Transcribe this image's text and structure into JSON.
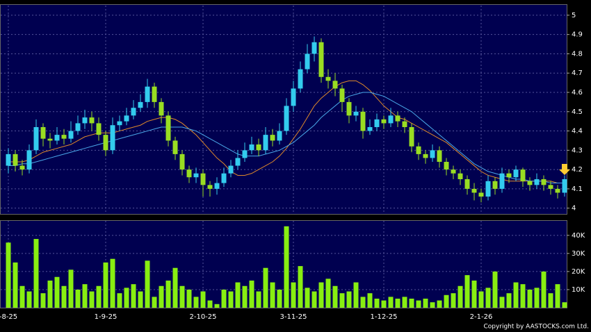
{
  "chart_data": [
    {
      "type": "candlestick",
      "categories": [
        "-8-25",
        null,
        null,
        null,
        null,
        null,
        null,
        null,
        null,
        null,
        null,
        null,
        null,
        null,
        "1-9-25",
        null,
        null,
        null,
        null,
        null,
        null,
        null,
        null,
        null,
        null,
        null,
        null,
        null,
        "2-10-25",
        null,
        null,
        null,
        null,
        null,
        null,
        null,
        null,
        null,
        null,
        null,
        null,
        "3-11-25",
        null,
        null,
        null,
        null,
        null,
        null,
        null,
        null,
        null,
        null,
        null,
        null,
        "1-12-25",
        null,
        null,
        null,
        null,
        null,
        null,
        null,
        null,
        null,
        null,
        null,
        null,
        null,
        "2-1-26",
        null,
        null,
        null,
        null,
        null,
        null,
        null,
        null,
        null,
        null,
        null,
        null
      ],
      "open": [
        4.22,
        4.28,
        4.22,
        4.2,
        4.3,
        4.42,
        4.36,
        4.35,
        4.38,
        4.36,
        4.4,
        4.44,
        4.47,
        4.44,
        4.38,
        4.3,
        4.43,
        4.45,
        4.48,
        4.52,
        4.55,
        4.63,
        4.55,
        4.48,
        4.35,
        4.28,
        4.2,
        4.16,
        4.18,
        4.12,
        4.1,
        4.13,
        4.18,
        4.22,
        4.26,
        4.3,
        4.33,
        4.3,
        4.38,
        4.35,
        4.4,
        4.53,
        4.62,
        4.72,
        4.8,
        4.86,
        4.68,
        4.66,
        4.62,
        4.55,
        4.48,
        4.5,
        4.4,
        4.42,
        4.46,
        4.44,
        4.48,
        4.45,
        4.42,
        4.32,
        4.28,
        4.26,
        4.3,
        4.24,
        4.2,
        4.18,
        4.15,
        4.1,
        4.08,
        4.06,
        4.14,
        4.1,
        4.18,
        4.16,
        4.2,
        4.14,
        4.12,
        4.15,
        4.12,
        4.1,
        4.08
      ],
      "high": [
        4.31,
        4.3,
        4.25,
        4.33,
        4.46,
        4.44,
        4.39,
        4.42,
        4.41,
        4.45,
        4.48,
        4.51,
        4.5,
        4.47,
        4.4,
        4.47,
        4.48,
        4.52,
        4.56,
        4.59,
        4.67,
        4.65,
        4.57,
        4.5,
        4.37,
        4.3,
        4.22,
        4.21,
        4.2,
        4.14,
        4.16,
        4.21,
        4.25,
        4.3,
        4.34,
        4.37,
        4.36,
        4.42,
        4.41,
        4.44,
        4.57,
        4.66,
        4.76,
        4.85,
        4.89,
        4.88,
        4.72,
        4.7,
        4.64,
        4.57,
        4.53,
        4.52,
        4.46,
        4.49,
        4.48,
        4.52,
        4.5,
        4.47,
        4.44,
        4.34,
        4.3,
        4.33,
        4.32,
        4.26,
        4.22,
        4.2,
        4.17,
        4.13,
        4.1,
        4.17,
        4.16,
        4.21,
        4.2,
        4.22,
        4.21,
        4.16,
        4.18,
        4.17,
        4.14,
        4.12,
        4.17
      ],
      "low": [
        4.18,
        4.19,
        4.17,
        4.18,
        4.28,
        4.32,
        4.31,
        4.33,
        4.33,
        4.34,
        4.38,
        4.41,
        4.4,
        4.35,
        4.27,
        4.28,
        4.4,
        4.43,
        4.46,
        4.5,
        4.52,
        4.52,
        4.44,
        4.32,
        4.25,
        4.17,
        4.13,
        4.13,
        4.06,
        4.06,
        4.07,
        4.11,
        4.16,
        4.2,
        4.24,
        4.28,
        4.27,
        4.28,
        4.32,
        4.33,
        4.38,
        4.5,
        4.6,
        4.7,
        4.76,
        4.65,
        4.62,
        4.58,
        4.5,
        4.44,
        4.45,
        4.36,
        4.38,
        4.4,
        4.41,
        4.42,
        4.42,
        4.39,
        4.29,
        4.25,
        4.23,
        4.24,
        4.21,
        4.17,
        4.15,
        4.12,
        4.07,
        4.04,
        4.03,
        4.04,
        4.07,
        4.08,
        4.13,
        4.14,
        4.11,
        4.09,
        4.1,
        4.09,
        4.07,
        4.05,
        4.06
      ],
      "close": [
        4.28,
        4.22,
        4.2,
        4.3,
        4.42,
        4.36,
        4.35,
        4.38,
        4.36,
        4.4,
        4.44,
        4.47,
        4.44,
        4.38,
        4.3,
        4.43,
        4.45,
        4.48,
        4.52,
        4.55,
        4.63,
        4.55,
        4.48,
        4.35,
        4.28,
        4.2,
        4.16,
        4.18,
        4.12,
        4.1,
        4.13,
        4.18,
        4.22,
        4.26,
        4.3,
        4.33,
        4.3,
        4.38,
        4.35,
        4.4,
        4.53,
        4.62,
        4.72,
        4.8,
        4.86,
        4.68,
        4.66,
        4.62,
        4.55,
        4.48,
        4.5,
        4.4,
        4.42,
        4.46,
        4.44,
        4.48,
        4.45,
        4.42,
        4.32,
        4.28,
        4.26,
        4.3,
        4.24,
        4.2,
        4.18,
        4.15,
        4.1,
        4.08,
        4.06,
        4.14,
        4.1,
        4.18,
        4.16,
        4.2,
        4.14,
        4.12,
        4.15,
        4.12,
        4.1,
        4.08,
        4.15
      ],
      "up_color": "#33ccee",
      "down_color": "#99dd22",
      "lines": [
        {
          "color": "#e08a2a",
          "values": [
            4.24,
            4.24,
            4.24,
            4.25,
            4.27,
            4.29,
            4.3,
            4.31,
            4.32,
            4.33,
            4.35,
            4.37,
            4.38,
            4.39,
            4.39,
            4.39,
            4.4,
            4.41,
            4.42,
            4.43,
            4.45,
            4.46,
            4.47,
            4.47,
            4.46,
            4.44,
            4.41,
            4.38,
            4.34,
            4.3,
            4.26,
            4.23,
            4.19,
            4.17,
            4.17,
            4.18,
            4.2,
            4.22,
            4.24,
            4.27,
            4.31,
            4.36,
            4.41,
            4.47,
            4.53,
            4.57,
            4.6,
            4.63,
            4.65,
            4.66,
            4.66,
            4.64,
            4.61,
            4.57,
            4.53,
            4.5,
            4.47,
            4.46,
            4.44,
            4.42,
            4.4,
            4.38,
            4.36,
            4.34,
            4.31,
            4.28,
            4.25,
            4.22,
            4.19,
            4.17,
            4.16,
            4.15,
            4.14,
            4.14,
            4.14,
            4.14,
            4.14,
            4.14,
            4.14,
            4.13,
            4.13
          ]
        },
        {
          "color": "#4aa8e8",
          "values": [
            4.22,
            4.22,
            4.23,
            4.23,
            4.24,
            4.25,
            4.26,
            4.27,
            4.28,
            4.29,
            4.3,
            4.31,
            4.32,
            4.33,
            4.34,
            4.35,
            4.36,
            4.37,
            4.38,
            4.39,
            4.4,
            4.41,
            4.42,
            4.42,
            4.42,
            4.42,
            4.41,
            4.4,
            4.38,
            4.36,
            4.34,
            4.32,
            4.3,
            4.28,
            4.27,
            4.27,
            4.27,
            4.28,
            4.29,
            4.3,
            4.32,
            4.34,
            4.37,
            4.4,
            4.43,
            4.47,
            4.5,
            4.53,
            4.56,
            4.58,
            4.59,
            4.6,
            4.6,
            4.59,
            4.58,
            4.56,
            4.54,
            4.52,
            4.5,
            4.47,
            4.44,
            4.41,
            4.38,
            4.35,
            4.32,
            4.29,
            4.26,
            4.23,
            4.21,
            4.19,
            4.18,
            4.17,
            4.16,
            4.15,
            4.15,
            4.14,
            4.14,
            4.14,
            4.13,
            4.13,
            4.13
          ]
        }
      ],
      "ylim": [
        3.97,
        5.05
      ],
      "yticks": [
        4,
        4.1,
        4.2,
        4.3,
        4.4,
        4.5,
        4.6,
        4.7,
        4.8,
        4.9,
        5
      ],
      "grid": true
    },
    {
      "type": "bar",
      "values": [
        36000,
        25000,
        12000,
        9000,
        38000,
        8000,
        15000,
        17000,
        12000,
        21000,
        10000,
        13000,
        9000,
        12000,
        25000,
        27000,
        8000,
        11000,
        13000,
        9000,
        26000,
        6000,
        12000,
        15000,
        22000,
        12000,
        10000,
        6000,
        9000,
        4000,
        2000,
        10000,
        9000,
        14000,
        12000,
        15000,
        9000,
        22000,
        14000,
        10000,
        45000,
        14000,
        23000,
        11000,
        9000,
        14000,
        16000,
        12000,
        8000,
        9000,
        14000,
        6000,
        8000,
        5000,
        4000,
        6000,
        5000,
        6000,
        5000,
        4000,
        5000,
        3000,
        4000,
        7000,
        8000,
        12000,
        18000,
        15000,
        9000,
        11000,
        20000,
        6000,
        8000,
        14000,
        13000,
        10000,
        11000,
        20000,
        8000,
        13000,
        3000
      ],
      "color": "#88ee11",
      "ylim": [
        0,
        48000
      ],
      "yticks": [
        {
          "value": 10000,
          "label": "10K"
        },
        {
          "value": 20000,
          "label": "20K"
        },
        {
          "value": 30000,
          "label": "30K"
        },
        {
          "value": 40000,
          "label": "40K"
        }
      ],
      "grid": true
    }
  ],
  "copyright": "Copyright by AASTOCKS.com Ltd."
}
